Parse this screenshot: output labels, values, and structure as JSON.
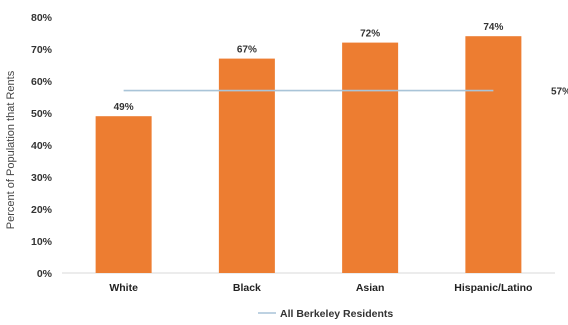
{
  "chart_data": {
    "type": "bar",
    "title": "",
    "xlabel": "",
    "ylabel": "Percent of Population that Rents",
    "categories": [
      "White",
      "Black",
      "Asian",
      "Hispanic/Latino"
    ],
    "values": [
      49,
      67,
      72,
      74
    ],
    "data_labels": [
      "49%",
      "67%",
      "72%",
      "74%"
    ],
    "ylim": [
      0,
      80
    ],
    "y_ticks": [
      "0%",
      "10%",
      "20%",
      "30%",
      "40%",
      "50%",
      "60%",
      "70%",
      "80%"
    ],
    "grid": false,
    "bar_color": "#ED7D31",
    "reference_line": {
      "name": "All Berkeley Residents",
      "value": 57,
      "label": "57%",
      "color": "#A9C4D8"
    },
    "legend": {
      "position": "bottom",
      "entries": [
        "All Berkeley Residents"
      ]
    }
  }
}
